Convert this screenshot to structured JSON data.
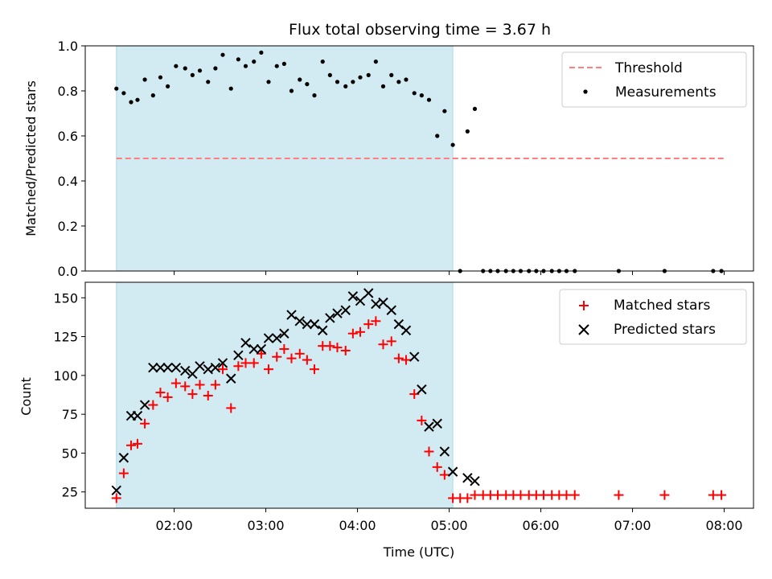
{
  "title": "Flux total observing time = 3.67 h",
  "colors": {
    "shade": "#add8e6",
    "threshold": "#ff7f7f",
    "measurement": "#000000",
    "matched": "#ff0000",
    "predicted": "#000000"
  },
  "chart_data": [
    {
      "type": "scatter",
      "ylabel": "Matched/Predicted stars",
      "ylim": [
        0,
        1.0
      ],
      "yticks": [
        0.0,
        0.2,
        0.4,
        0.6,
        0.8,
        1.0
      ],
      "ytick_labels": [
        "0.0",
        "0.2",
        "0.4",
        "0.6",
        "0.8",
        "1.0"
      ],
      "xlim_hours": [
        1.03,
        8.32
      ],
      "shaded_span_hours": [
        1.37,
        5.04
      ],
      "legend_position": "upper-right",
      "threshold": {
        "name": "Threshold",
        "value": 0.5,
        "x_hours": [
          1.37,
          8.0
        ]
      },
      "series": [
        {
          "name": "Measurements",
          "x_hours": [
            1.37,
            1.45,
            1.53,
            1.6,
            1.68,
            1.77,
            1.85,
            1.93,
            2.02,
            2.12,
            2.2,
            2.28,
            2.37,
            2.45,
            2.53,
            2.62,
            2.7,
            2.78,
            2.87,
            2.95,
            3.03,
            3.12,
            3.2,
            3.28,
            3.37,
            3.45,
            3.53,
            3.62,
            3.7,
            3.78,
            3.87,
            3.95,
            4.03,
            4.12,
            4.2,
            4.28,
            4.37,
            4.45,
            4.53,
            4.62,
            4.7,
            4.78,
            4.87,
            4.95,
            5.04,
            5.12,
            5.2,
            5.28,
            5.37,
            5.45,
            5.53,
            5.62,
            5.7,
            5.78,
            5.87,
            5.95,
            6.03,
            6.12,
            6.2,
            6.28,
            6.37,
            6.85,
            7.35,
            7.88,
            7.97
          ],
          "y": [
            0.81,
            0.79,
            0.75,
            0.76,
            0.85,
            0.78,
            0.86,
            0.82,
            0.91,
            0.9,
            0.87,
            0.89,
            0.84,
            0.9,
            0.96,
            0.81,
            0.94,
            0.91,
            0.93,
            0.97,
            0.84,
            0.91,
            0.92,
            0.8,
            0.85,
            0.83,
            0.78,
            0.93,
            0.87,
            0.84,
            0.82,
            0.84,
            0.86,
            0.87,
            0.93,
            0.82,
            0.87,
            0.84,
            0.85,
            0.79,
            0.78,
            0.76,
            0.6,
            0.71,
            0.56,
            0.0,
            0.62,
            0.72,
            0.0,
            0.0,
            0.0,
            0.0,
            0.0,
            0.0,
            0.0,
            0.0,
            0.0,
            0.0,
            0.0,
            0.0,
            0.0,
            0.0,
            0.0,
            0.0,
            0.0
          ]
        }
      ],
      "xtick_hours": [
        2,
        3,
        4,
        5,
        6,
        7,
        8
      ]
    },
    {
      "type": "scatter",
      "xlabel": "Time (UTC)",
      "ylabel": "Count",
      "ylim": [
        14.5,
        160
      ],
      "yticks": [
        25,
        50,
        75,
        100,
        125,
        150
      ],
      "ytick_labels": [
        "25",
        "50",
        "75",
        "100",
        "125",
        "150"
      ],
      "xlim_hours": [
        1.03,
        8.32
      ],
      "shaded_span_hours": [
        1.37,
        5.04
      ],
      "legend_position": "upper-right",
      "xtick_hours": [
        2,
        3,
        4,
        5,
        6,
        7,
        8
      ],
      "xtick_labels": [
        "02:00",
        "03:00",
        "04:00",
        "05:00",
        "06:00",
        "07:00",
        "08:00"
      ],
      "series": [
        {
          "name": "Matched stars",
          "marker": "plus",
          "x_hours": [
            1.37,
            1.45,
            1.53,
            1.6,
            1.68,
            1.77,
            1.85,
            1.93,
            2.02,
            2.12,
            2.2,
            2.28,
            2.37,
            2.45,
            2.53,
            2.62,
            2.7,
            2.78,
            2.87,
            2.95,
            3.03,
            3.12,
            3.2,
            3.28,
            3.37,
            3.45,
            3.53,
            3.62,
            3.7,
            3.78,
            3.87,
            3.95,
            4.03,
            4.12,
            4.2,
            4.28,
            4.37,
            4.45,
            4.53,
            4.62,
            4.7,
            4.78,
            4.87,
            4.95,
            5.04,
            5.12,
            5.2,
            5.28,
            5.37,
            5.45,
            5.53,
            5.62,
            5.7,
            5.78,
            5.87,
            5.95,
            6.03,
            6.12,
            6.2,
            6.28,
            6.37,
            6.85,
            7.35,
            7.88,
            7.97
          ],
          "y": [
            21,
            37,
            55,
            56,
            69,
            81,
            89,
            86,
            95,
            93,
            88,
            94,
            87,
            94,
            104,
            79,
            106,
            108,
            108,
            114,
            104,
            112,
            117,
            111,
            114,
            110,
            104,
            119,
            119,
            118,
            116,
            127,
            128,
            133,
            135,
            120,
            122,
            111,
            110,
            88,
            71,
            51,
            41,
            36,
            21,
            21,
            21,
            23,
            23,
            23,
            23,
            23,
            23,
            23,
            23,
            23,
            23,
            23,
            23,
            23,
            23,
            23,
            23,
            23,
            23
          ]
        },
        {
          "name": "Predicted stars",
          "marker": "x",
          "x_hours": [
            1.37,
            1.45,
            1.53,
            1.6,
            1.68,
            1.77,
            1.85,
            1.93,
            2.02,
            2.12,
            2.2,
            2.28,
            2.37,
            2.45,
            2.53,
            2.62,
            2.7,
            2.78,
            2.87,
            2.95,
            3.03,
            3.12,
            3.2,
            3.28,
            3.37,
            3.45,
            3.53,
            3.62,
            3.7,
            3.78,
            3.87,
            3.95,
            4.03,
            4.12,
            4.2,
            4.28,
            4.37,
            4.45,
            4.53,
            4.62,
            4.7,
            4.78,
            4.87,
            4.95,
            5.04,
            5.2,
            5.28
          ],
          "y": [
            26,
            47,
            74,
            74,
            81,
            105,
            105,
            105,
            105,
            103,
            101,
            106,
            104,
            105,
            108,
            98,
            113,
            121,
            117,
            117,
            124,
            124,
            127,
            139,
            135,
            133,
            133,
            129,
            137,
            140,
            142,
            151,
            148,
            153,
            146,
            147,
            142,
            133,
            129,
            112,
            91,
            67,
            69,
            51,
            38,
            34,
            32
          ]
        }
      ]
    }
  ]
}
